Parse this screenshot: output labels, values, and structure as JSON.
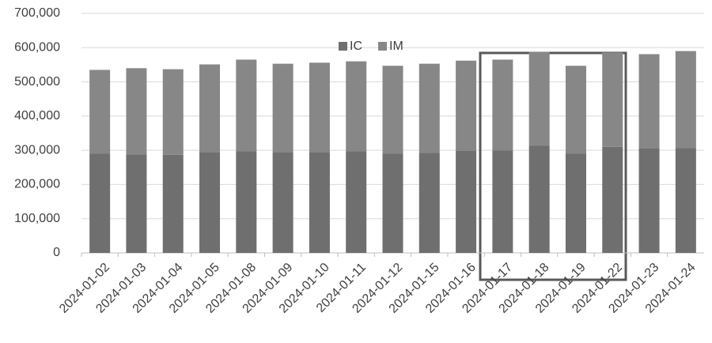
{
  "chart_data": {
    "type": "stacked_bar",
    "categories": [
      "2024-01-02",
      "2024-01-03",
      "2024-01-04",
      "2024-01-05",
      "2024-01-08",
      "2024-01-09",
      "2024-01-10",
      "2024-01-11",
      "2024-01-12",
      "2024-01-15",
      "2024-01-16",
      "2024-01-17",
      "2024-01-18",
      "2024-01-19",
      "2024-01-22",
      "2024-01-23",
      "2024-01-24"
    ],
    "series": [
      {
        "name": "IC",
        "color": "#6f6f6f",
        "values": [
          290000,
          288000,
          287000,
          295000,
          297000,
          295000,
          295000,
          297000,
          290000,
          293000,
          298000,
          300000,
          313000,
          290000,
          310000,
          305000,
          307000
        ]
      },
      {
        "name": "IM",
        "color": "#878787",
        "values": [
          245000,
          252000,
          250000,
          256000,
          268000,
          258000,
          261000,
          263000,
          257000,
          260000,
          264000,
          265000,
          275000,
          257000,
          276000,
          276000,
          283000
        ]
      }
    ],
    "ylim": [
      0,
      700000
    ],
    "yticks": [
      0,
      {
        "value": 100000,
        "label": "100,000"
      },
      {
        "value": 200000,
        "label": "200,000"
      },
      {
        "value": 300000,
        "label": "300,000"
      },
      {
        "value": 400000,
        "label": "400,000"
      },
      {
        "value": 500000,
        "label": "500,000"
      },
      {
        "value": 600000,
        "label": "600,000"
      },
      {
        "value": 700000,
        "label": "700,000"
      }
    ],
    "grid": true,
    "legend": "top"
  }
}
